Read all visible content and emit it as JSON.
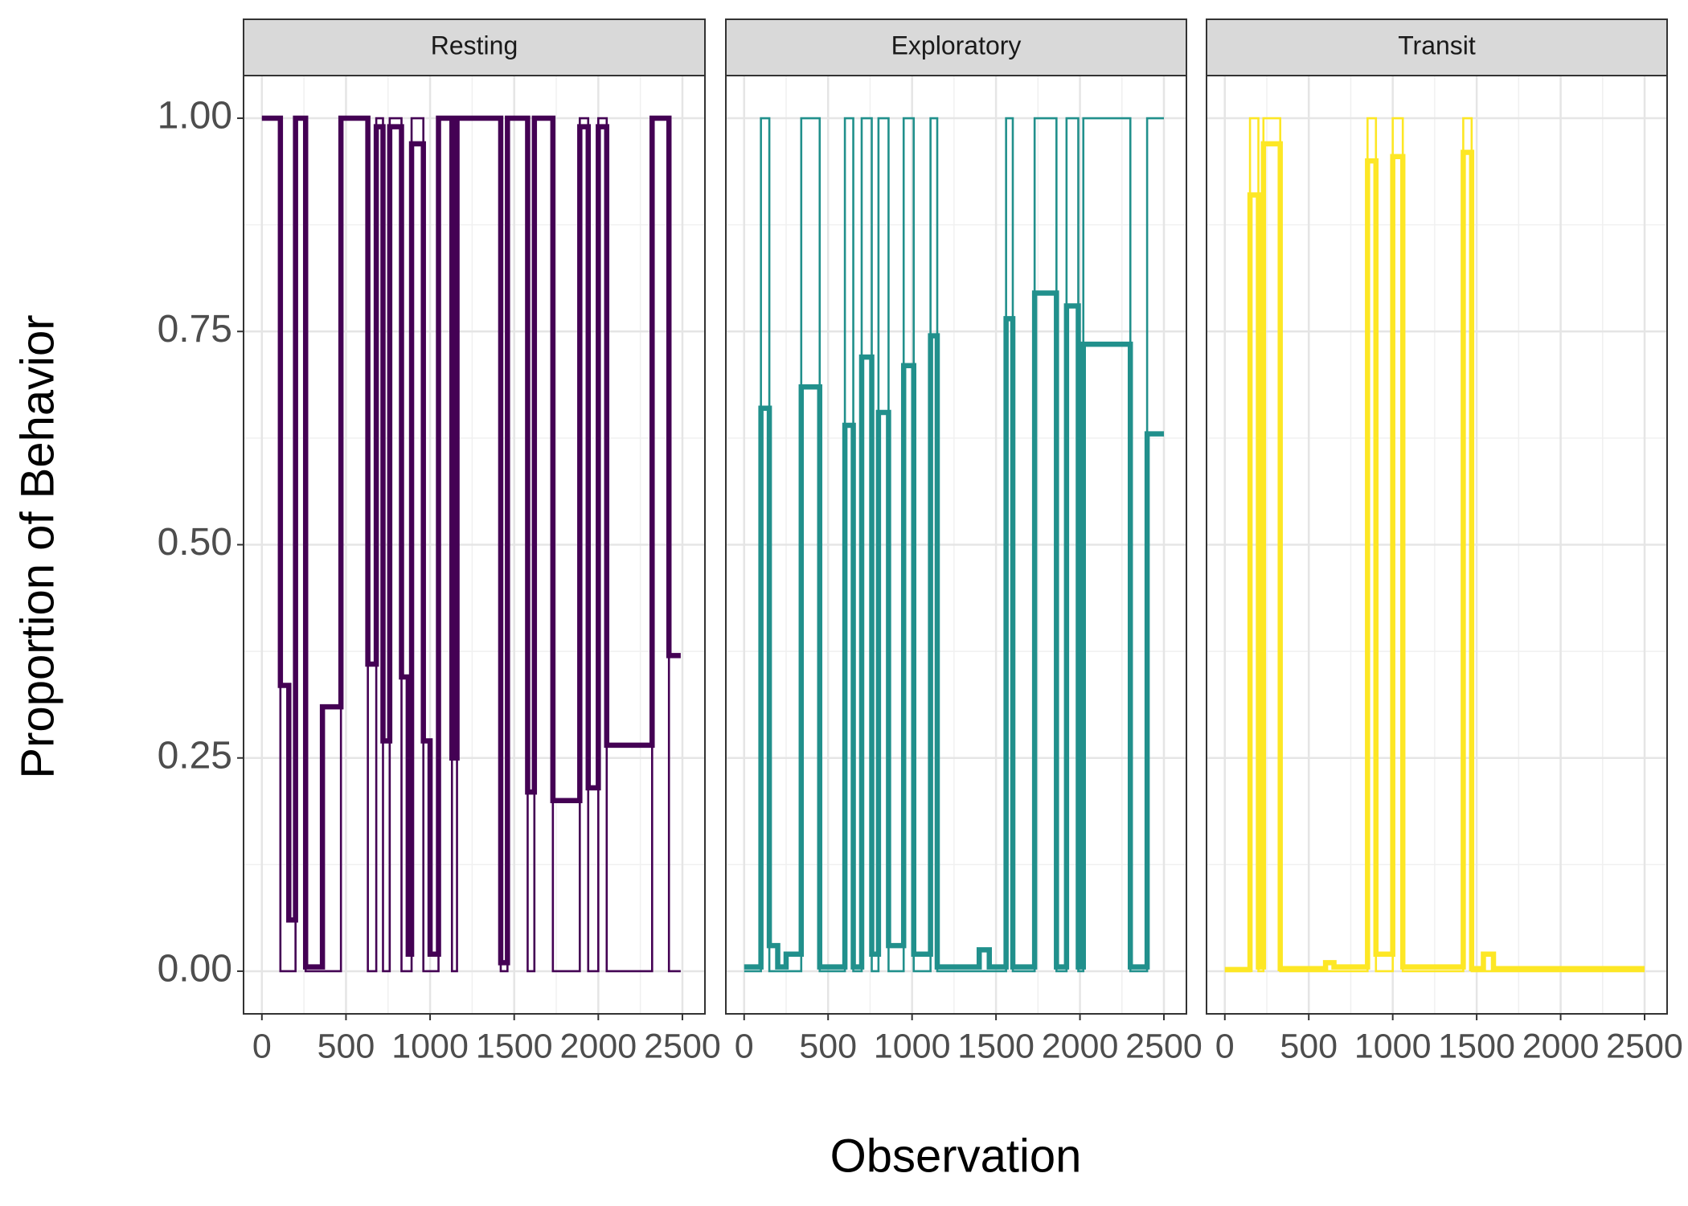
{
  "x_label": "Observation",
  "y_label": "Proportion of Behavior",
  "chart_data": [
    {
      "type": "step",
      "title": "Resting",
      "xlim": [
        -109,
        2634
      ],
      "ylim": [
        -0.05,
        1.05
      ],
      "xticks": [
        0,
        500,
        1000,
        1500,
        2000,
        2500
      ],
      "yticks": [
        {
          "value": 0,
          "label": "0.00"
        },
        {
          "value": 0.25,
          "label": "0.25"
        },
        {
          "value": 0.5,
          "label": "0.50"
        },
        {
          "value": 0.75,
          "label": "0.75"
        },
        {
          "value": 1,
          "label": "1.00"
        }
      ],
      "grid": true,
      "x": [
        0,
        110,
        160,
        200,
        260,
        360,
        470,
        630,
        680,
        720,
        760,
        830,
        870,
        890,
        960,
        1000,
        1050,
        1130,
        1160,
        1420,
        1460,
        1580,
        1620,
        1730,
        1890,
        1940,
        2000,
        2050,
        2320,
        2420,
        2490
      ],
      "series": [
        {
          "color": "#440154",
          "values": [
            1,
            0,
            0,
            1,
            0,
            0,
            1,
            0,
            1,
            0,
            1,
            0,
            0,
            1,
            0,
            0,
            1,
            0,
            1,
            0,
            1,
            0,
            1,
            0,
            1,
            0,
            1,
            0,
            1,
            0,
            0
          ]
        },
        {
          "color": "#440154",
          "values": [
            1,
            0.335,
            0.06,
            1,
            0.005,
            0.31,
            1,
            0.36,
            0.99,
            0.27,
            0.99,
            0.345,
            0.02,
            0.97,
            0.27,
            0.02,
            1,
            0.25,
            1,
            0.01,
            1,
            0.21,
            1,
            0.2,
            0.99,
            0.215,
            0.99,
            0.265,
            1,
            0.37,
            0.37
          ]
        }
      ]
    },
    {
      "type": "step",
      "title": "Exploratory",
      "xlim": [
        -109,
        2634
      ],
      "ylim": [
        -0.05,
        1.05
      ],
      "xticks": [
        0,
        500,
        1000,
        1500,
        2000,
        2500
      ],
      "grid": true,
      "x": [
        0,
        100,
        150,
        200,
        250,
        340,
        450,
        600,
        650,
        700,
        760,
        800,
        860,
        950,
        1010,
        1110,
        1150,
        1400,
        1460,
        1560,
        1600,
        1730,
        1860,
        1920,
        1990,
        2020,
        2300,
        2400,
        2500
      ],
      "series": [
        {
          "color": "#21908C",
          "values": [
            0,
            1,
            0,
            0,
            0,
            1,
            0,
            1,
            0,
            1,
            0,
            1,
            0,
            1,
            0,
            1,
            0,
            0,
            0,
            1,
            0,
            1,
            0,
            1,
            0,
            1,
            0,
            1,
            1
          ]
        },
        {
          "color": "#21908C",
          "values": [
            0.005,
            0.66,
            0.03,
            0.005,
            0.02,
            0.685,
            0.005,
            0.64,
            0.005,
            0.72,
            0.02,
            0.655,
            0.03,
            0.71,
            0.02,
            0.745,
            0.005,
            0.025,
            0.005,
            0.765,
            0.005,
            0.795,
            0.005,
            0.78,
            0.005,
            0.735,
            0.005,
            0.63,
            0.63
          ]
        }
      ]
    },
    {
      "type": "step",
      "title": "Transit",
      "xlim": [
        -109,
        2634
      ],
      "ylim": [
        -0.05,
        1.05
      ],
      "xticks": [
        0,
        500,
        1000,
        1500,
        2000,
        2500
      ],
      "grid": true,
      "x": [
        0,
        150,
        200,
        230,
        330,
        600,
        650,
        850,
        900,
        1000,
        1060,
        1420,
        1470,
        1540,
        1600,
        2500
      ],
      "series": [
        {
          "color": "#FDE725",
          "values": [
            0,
            1,
            0,
            1,
            0,
            0,
            0,
            1,
            0,
            1,
            0,
            1,
            0,
            0,
            0,
            0
          ]
        },
        {
          "color": "#FDE725",
          "values": [
            0.002,
            0.91,
            0.005,
            0.97,
            0.003,
            0.01,
            0.005,
            0.95,
            0.02,
            0.955,
            0.005,
            0.96,
            0.003,
            0.02,
            0.003,
            0.003
          ]
        }
      ]
    }
  ]
}
